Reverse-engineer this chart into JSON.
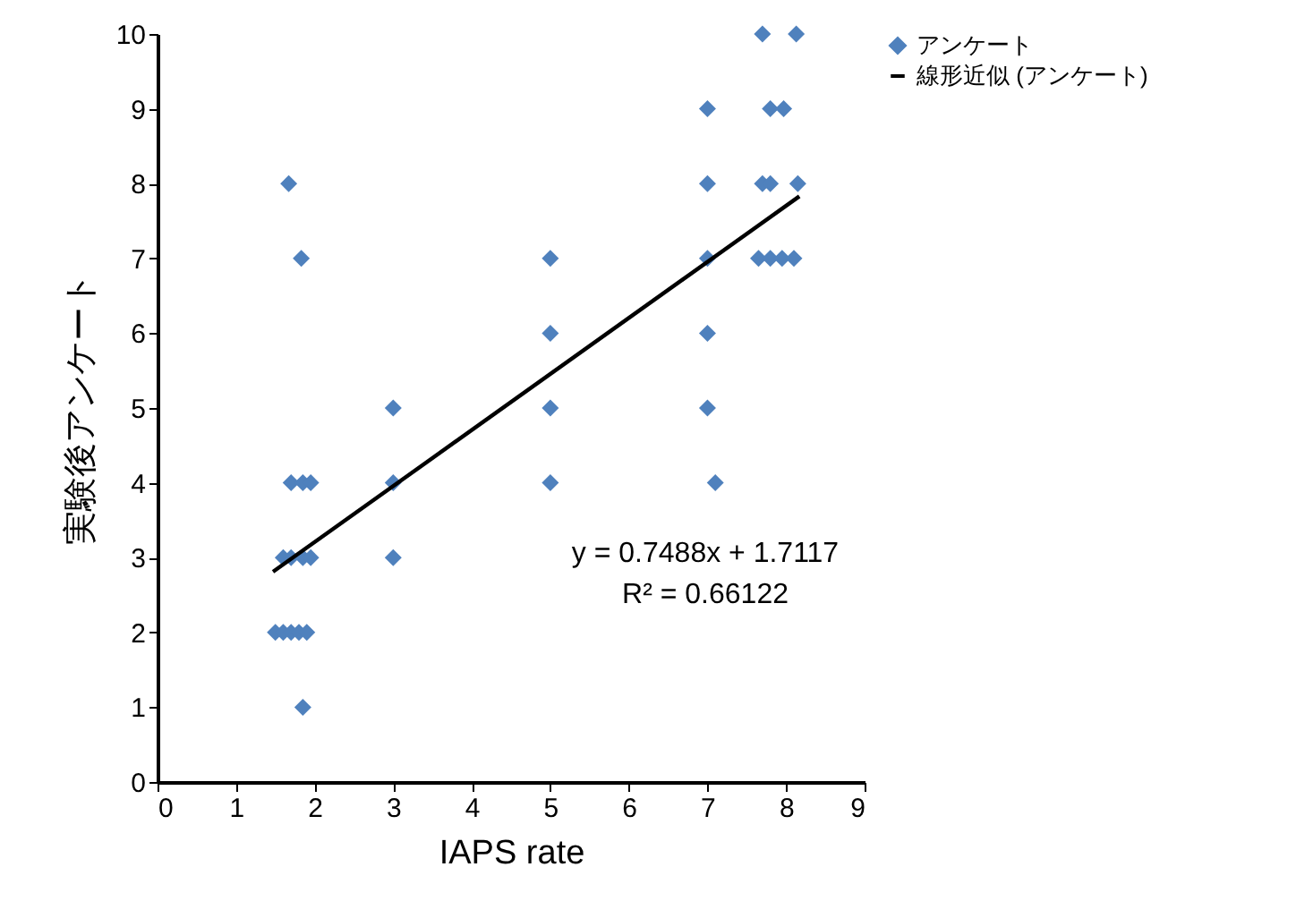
{
  "chart_data": {
    "type": "scatter",
    "xlabel": "IAPS rate",
    "ylabel": "実験後アンケート",
    "xlim": [
      0,
      9
    ],
    "xticks": [
      0,
      1,
      2,
      3,
      4,
      5,
      6,
      7,
      8,
      9
    ],
    "ylim": [
      0,
      10
    ],
    "yticks": [
      0,
      1,
      2,
      3,
      4,
      5,
      6,
      7,
      8,
      9,
      10
    ],
    "grid": false,
    "legend": "top right",
    "annotations": [
      "y = 0.7488x + 1.7117",
      "R² = 0.66122"
    ],
    "series": [
      {
        "name": "アンケート",
        "marker": "diamond",
        "color": "#4f81bd",
        "x": [
          1.67,
          1.83,
          1.7,
          1.85,
          1.95,
          1.6,
          1.7,
          1.85,
          1.95,
          1.5,
          1.6,
          1.7,
          1.8,
          1.9,
          1.85,
          3.0,
          3.0,
          3.0,
          5.0,
          5.0,
          5.0,
          5.0,
          7.0,
          7.0,
          7.0,
          7.0,
          7.0,
          7.1,
          7.7,
          8.13,
          7.8,
          7.97,
          7.7,
          7.8,
          8.15,
          7.65,
          7.8,
          7.95,
          8.1
        ],
        "values": [
          8,
          7,
          4,
          4,
          4,
          3,
          3,
          3,
          3,
          2,
          2,
          2,
          2,
          2,
          1,
          5,
          4,
          3,
          7,
          6,
          5,
          4,
          9,
          8,
          7,
          6,
          5,
          4,
          10,
          10,
          9,
          9,
          8,
          8,
          8,
          7,
          7,
          7,
          7
        ]
      },
      {
        "name": "線形近似 (アンケート)",
        "type": "line",
        "color": "#000000",
        "x": [
          1.47,
          8.17
        ],
        "values": [
          2.81,
          7.83
        ]
      }
    ]
  }
}
